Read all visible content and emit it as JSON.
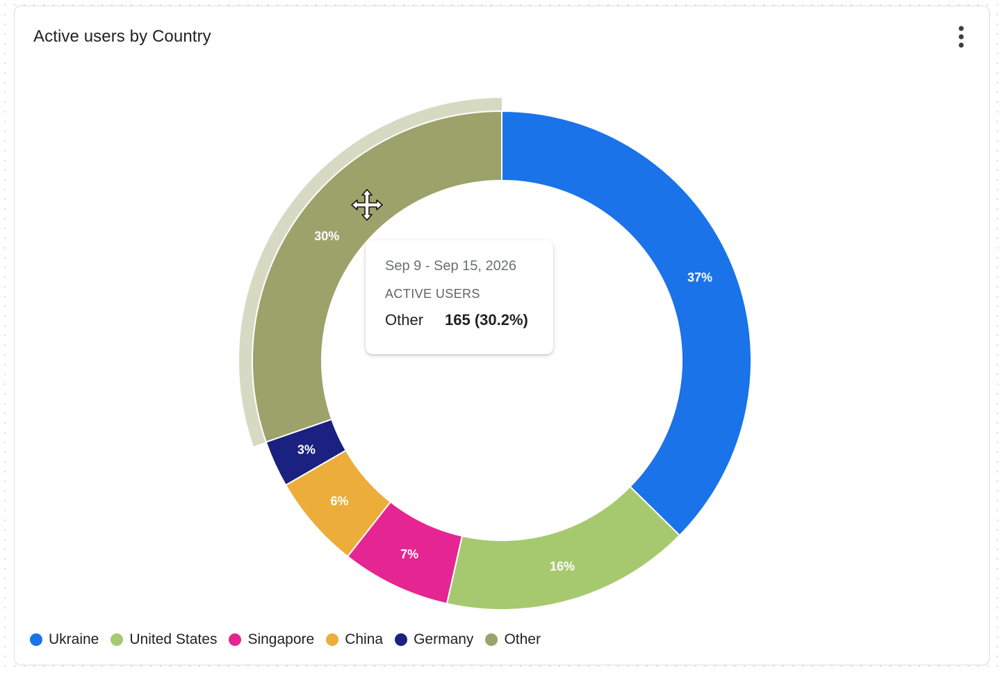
{
  "card": {
    "title": "Active users by Country",
    "more_icon": "more-vert-icon"
  },
  "chart_data": {
    "type": "pie",
    "style": "donut",
    "title": "Active users by Country",
    "categories": [
      "Ukraine",
      "United States",
      "Singapore",
      "China",
      "Germany",
      "Other"
    ],
    "values": [
      37,
      16,
      7,
      6,
      3,
      30
    ],
    "labels": [
      "37%",
      "16%",
      "7%",
      "6%",
      "3%",
      "30%"
    ],
    "colors": [
      "#1a73e8",
      "#a6c96f",
      "#e52592",
      "#edad3b",
      "#1a2180",
      "#9ca26a"
    ],
    "highlighted": "Other",
    "legend_position": "bottom-left"
  },
  "tooltip": {
    "date_range": "Sep 9 - Sep 15, 2026",
    "metric": "ACTIVE USERS",
    "name": "Other",
    "value": "165 (30.2%)"
  },
  "cursor_icon": "move-cursor-icon"
}
